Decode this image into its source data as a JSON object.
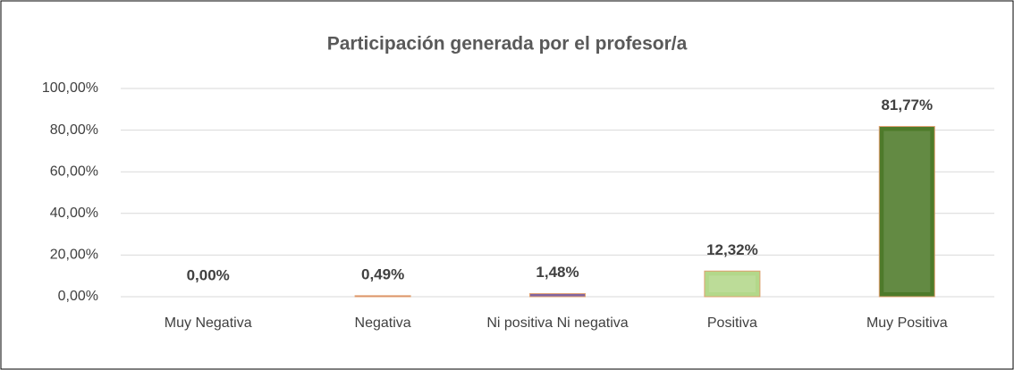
{
  "chart_data": {
    "type": "bar",
    "title": "Participación generada por el profesor/a",
    "categories": [
      "Muy Negativa",
      "Negativa",
      "Ni positiva Ni negativa",
      "Positiva",
      "Muy Positiva"
    ],
    "values": [
      0,
      0.49,
      1.48,
      12.32,
      81.77
    ],
    "value_labels": [
      "0,00%",
      "0,49%",
      "1,48%",
      "12,32%",
      "81,77%"
    ],
    "colors": [
      "#4f81bd",
      "#c0504d",
      "#8064a2",
      "#b3d88a",
      "#4e7a2a"
    ],
    "ylim": [
      0,
      100
    ],
    "yticks": [
      {
        "value": 0,
        "label": "0,00%"
      },
      {
        "value": 20,
        "label": "20,00%"
      },
      {
        "value": 40,
        "label": "40,00%"
      },
      {
        "value": 60,
        "label": "60,00%"
      },
      {
        "value": 80,
        "label": "80,00%"
      },
      {
        "value": 100,
        "label": "100,00%"
      }
    ],
    "grid": true
  }
}
